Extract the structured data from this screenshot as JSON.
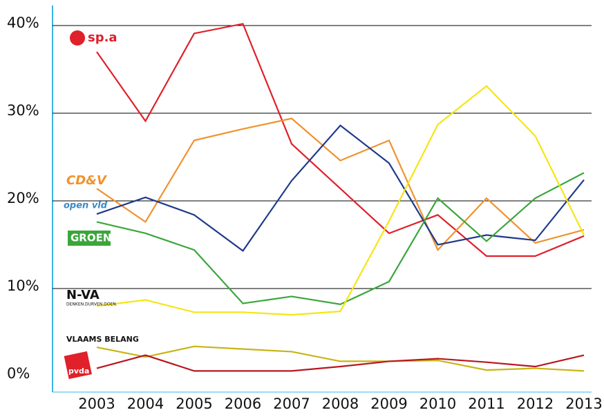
{
  "chart_data": {
    "type": "line",
    "categories": [
      "2003",
      "2004",
      "2005",
      "2006",
      "2007",
      "2008",
      "2009",
      "2010",
      "2011",
      "2012",
      "2013"
    ],
    "ylim": [
      0,
      40
    ],
    "yticks": [
      {
        "value": 0,
        "label": "0%"
      },
      {
        "value": 10,
        "label": "10%"
      },
      {
        "value": 20,
        "label": "20%"
      },
      {
        "value": 30,
        "label": "30%"
      },
      {
        "value": 40,
        "label": "40%"
      }
    ],
    "grid": true,
    "series": [
      {
        "name": "sp.a",
        "color": "#e0202a",
        "values": [
          37.0,
          29.1,
          39.1,
          40.2,
          26.5,
          21.4,
          16.3,
          18.4,
          13.7,
          13.7,
          16.0
        ]
      },
      {
        "name": "CD&V",
        "color": "#f0922e",
        "values": [
          21.4,
          17.6,
          26.9,
          28.2,
          29.4,
          24.6,
          26.9,
          14.4,
          20.3,
          15.2,
          16.7
        ]
      },
      {
        "name": "open vld",
        "color": "#1f3a8a",
        "values": [
          18.5,
          20.4,
          18.4,
          14.3,
          22.3,
          28.6,
          24.3,
          15.0,
          16.1,
          15.5,
          22.4
        ]
      },
      {
        "name": "GROEN",
        "color": "#3aa63a",
        "values": [
          17.6,
          16.3,
          14.4,
          8.3,
          9.1,
          8.2,
          10.8,
          20.3,
          15.4,
          20.3,
          23.2
        ]
      },
      {
        "name": "N-VA",
        "tagline": "DENKEN.DURVEN.DOEN.",
        "color": "#f5e614",
        "values": [
          8.0,
          8.7,
          7.3,
          7.3,
          7.0,
          7.4,
          17.7,
          28.7,
          33.1,
          27.4,
          16.1
        ]
      },
      {
        "name": "VLAAMS BELANG",
        "color": "#c8b414",
        "values": [
          3.3,
          2.2,
          3.4,
          3.1,
          2.8,
          1.7,
          1.7,
          1.8,
          0.7,
          0.9,
          0.6
        ]
      },
      {
        "name": "pvda",
        "color": "#b8161e",
        "values": [
          0.9,
          2.4,
          0.6,
          0.6,
          0.6,
          1.1,
          1.7,
          2.0,
          1.6,
          1.1,
          2.4
        ]
      }
    ]
  }
}
